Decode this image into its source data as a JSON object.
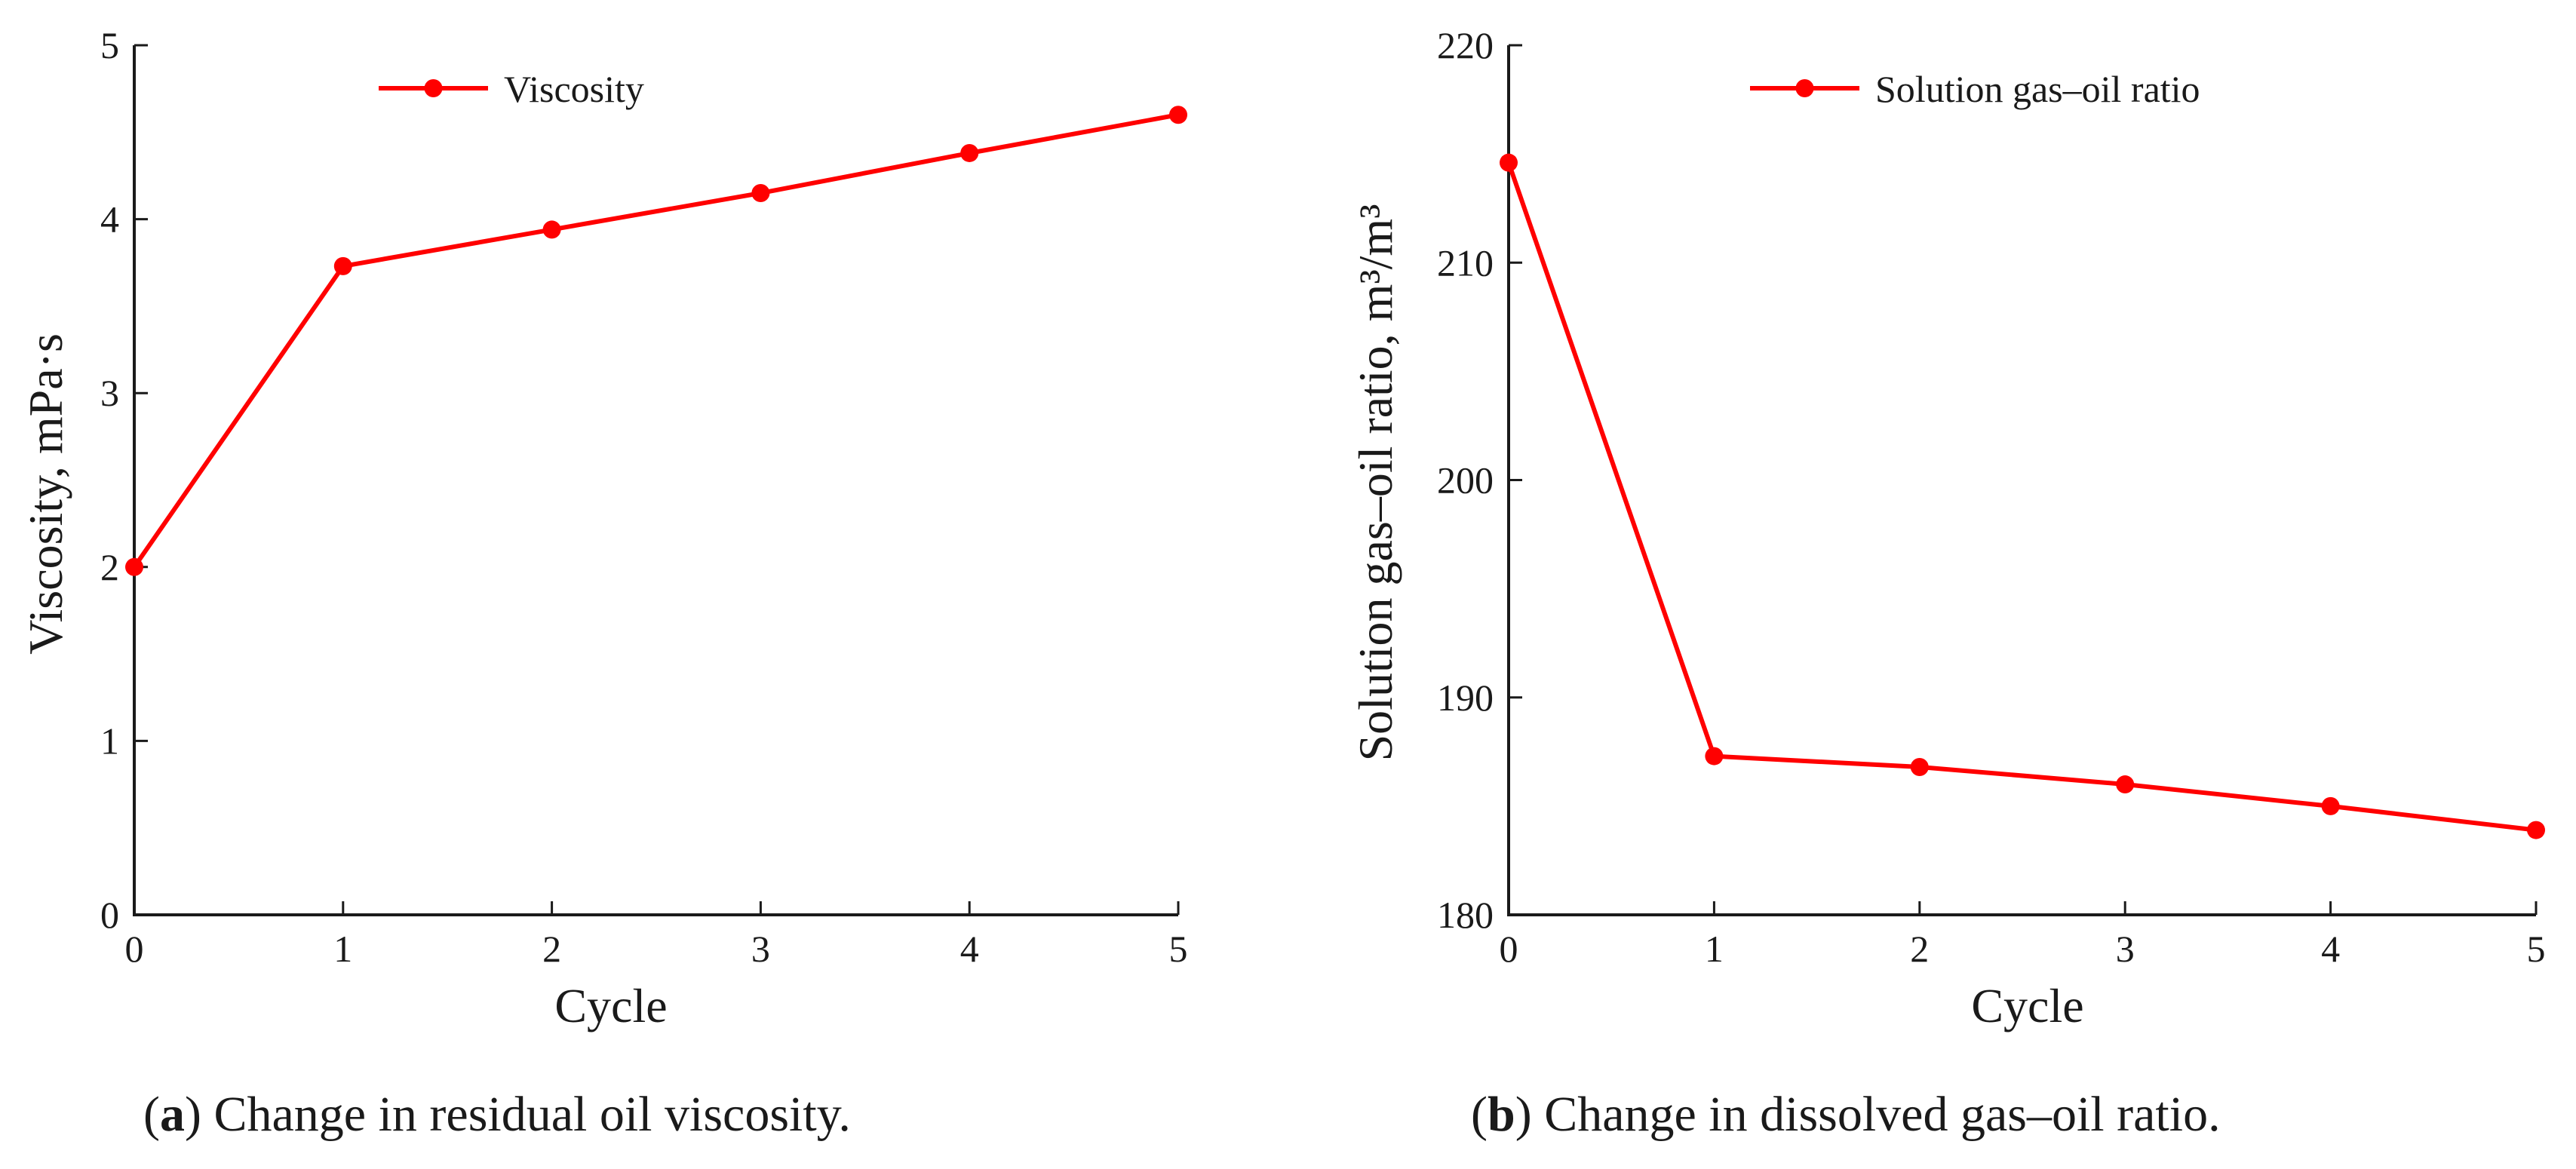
{
  "colors": {
    "series": "#ff0000",
    "axis": "#1a1a1a"
  },
  "chart_data": [
    {
      "type": "line",
      "x": [
        0,
        1,
        2,
        3,
        4,
        5
      ],
      "series": [
        {
          "name": "Viscosity",
          "values": [
            2.0,
            3.73,
            3.94,
            4.15,
            4.38,
            4.6
          ]
        }
      ],
      "xlabel": "Cycle",
      "ylabel": "Viscosity, mPa·s",
      "xlim": [
        0,
        5
      ],
      "ylim": [
        0,
        5
      ],
      "xticks": [
        "0",
        "1",
        "2",
        "3",
        "4",
        "5"
      ],
      "yticks": [
        "0",
        "1",
        "2",
        "3",
        "4",
        "5"
      ],
      "legend_position": "top-center",
      "grid": false,
      "caption": {
        "letter": "a",
        "text": " Change in residual oil viscosity."
      }
    },
    {
      "type": "line",
      "x": [
        0,
        1,
        2,
        3,
        4,
        5
      ],
      "series": [
        {
          "name": "Solution gas–oil ratio",
          "values": [
            214.6,
            187.3,
            186.8,
            186.0,
            185.0,
            183.9
          ]
        }
      ],
      "xlabel": "Cycle",
      "ylabel": "Solution gas–oil ratio, m³/m³",
      "xlim": [
        0,
        5
      ],
      "ylim": [
        180,
        220
      ],
      "xticks": [
        "0",
        "1",
        "2",
        "3",
        "4",
        "5"
      ],
      "yticks": [
        "180",
        "190",
        "200",
        "210",
        "220"
      ],
      "legend_position": "top-center",
      "grid": false,
      "caption": {
        "letter": "b",
        "text": " Change in dissolved gas–oil ratio."
      }
    }
  ]
}
